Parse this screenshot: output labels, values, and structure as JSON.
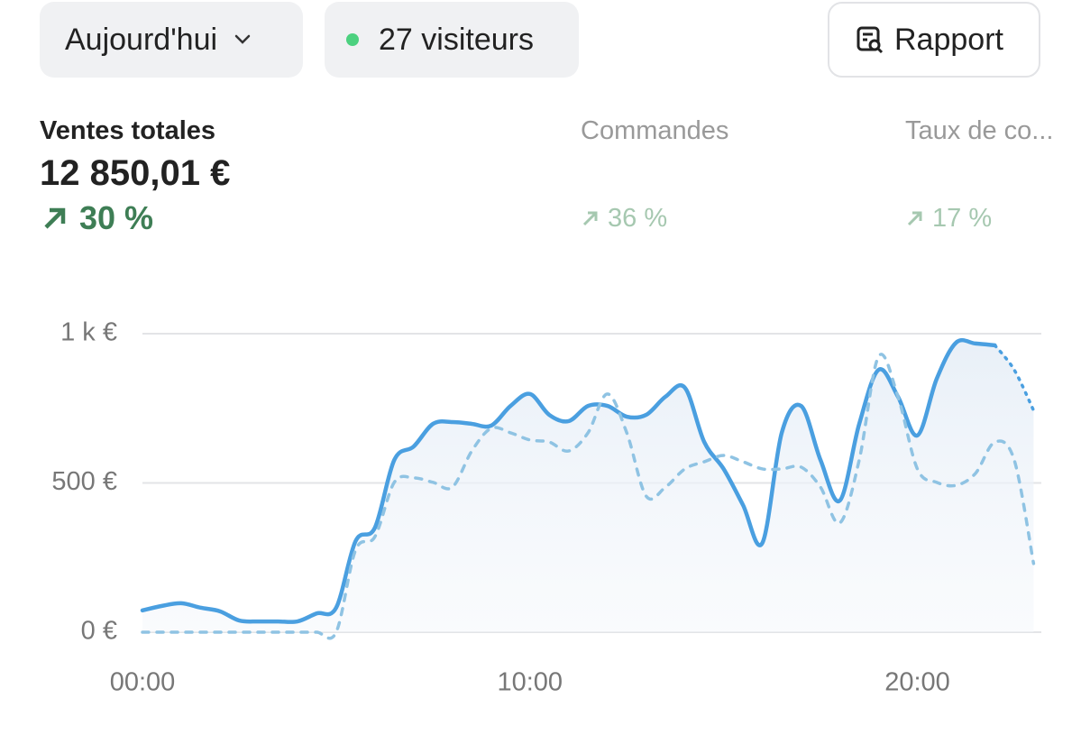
{
  "toolbar": {
    "period": "Aujourd'hui",
    "visitors": "27 visiteurs",
    "report": "Rapport"
  },
  "metrics": [
    {
      "label": "Ventes totales",
      "value": "12 850,01 €",
      "change": "30 %"
    },
    {
      "label": "Commandes",
      "change": "36 %"
    },
    {
      "label": "Taux de co...",
      "change": "17 %"
    }
  ],
  "chart_data": {
    "type": "line",
    "x": [
      0,
      0.5,
      1,
      1.5,
      2,
      2.5,
      3,
      3.5,
      4,
      4.5,
      5,
      5.5,
      6,
      6.5,
      7,
      7.5,
      8,
      8.5,
      9,
      9.5,
      10,
      10.5,
      11,
      11.5,
      12,
      12.5,
      13,
      13.5,
      14,
      14.5,
      15,
      15.5,
      16,
      16.5,
      17,
      17.5,
      18,
      18.5,
      19,
      19.5,
      20,
      20.5,
      21,
      21.5,
      22,
      22.5,
      23
    ],
    "xlim": [
      0,
      23.2
    ],
    "xticks": [
      {
        "value": 0,
        "label": "00:00"
      },
      {
        "value": 10,
        "label": "10:00"
      },
      {
        "value": 20,
        "label": "20:00"
      }
    ],
    "ylim": [
      0,
      1000
    ],
    "yticks": [
      {
        "value": 0,
        "label": "0 €"
      },
      {
        "value": 500,
        "label": "500 €"
      },
      {
        "value": 1000,
        "label": "1 k €"
      }
    ],
    "grid": true,
    "series": [
      {
        "color": "#4a9fe0",
        "style": "solid",
        "dotted_from": 22,
        "area": true,
        "values": [
          73,
          88,
          97,
          82,
          70,
          39,
          36,
          36,
          36,
          63,
          82,
          305,
          350,
          577,
          622,
          698,
          704,
          698,
          692,
          758,
          798,
          728,
          707,
          758,
          758,
          722,
          728,
          789,
          819,
          637,
          547,
          426,
          299,
          668,
          758,
          577,
          441,
          698,
          879,
          789,
          659,
          849,
          970,
          967,
          961,
          879,
          743
        ]
      },
      {
        "color": "#8fc3e3",
        "style": "dashed",
        "area": false,
        "values": [
          0,
          0,
          0,
          0,
          0,
          0,
          0,
          0,
          0,
          0,
          0,
          275,
          320,
          502,
          517,
          502,
          486,
          607,
          683,
          668,
          644,
          637,
          607,
          668,
          798,
          668,
          456,
          486,
          547,
          571,
          592,
          571,
          547,
          547,
          553,
          486,
          366,
          577,
          924,
          789,
          547,
          502,
          492,
          532,
          637,
          577,
          230
        ]
      }
    ]
  }
}
